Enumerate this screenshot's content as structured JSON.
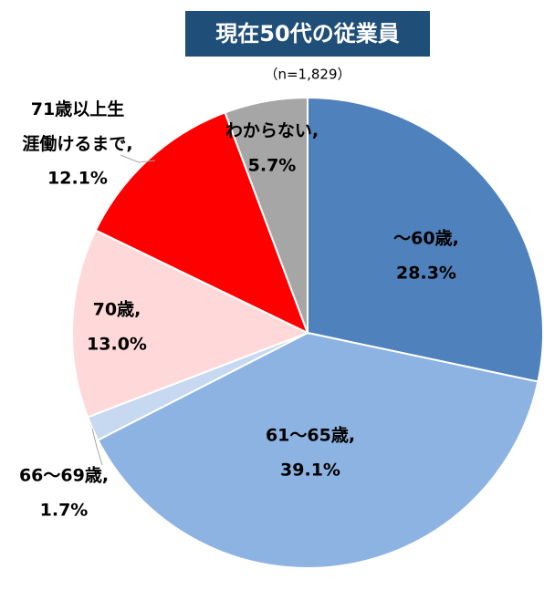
{
  "chart_data": {
    "type": "pie",
    "title": "現在50代の従業員",
    "subtitle": "（n=1,829）",
    "categories": [
      "～60歳,",
      "61～65歳,",
      "66～69歳,",
      "70歳,",
      "71歳以上生涯働けるまで,",
      "わからない,"
    ],
    "values": [
      28.3,
      39.1,
      1.7,
      13.0,
      12.1,
      5.7
    ],
    "value_labels": [
      "28.3%",
      "39.1%",
      "1.7%",
      "13.0%",
      "12.1%",
      "5.7%"
    ],
    "colors": [
      "#4f81bd",
      "#8db3e2",
      "#c6d9f1",
      "#ffd9d9",
      "#ff0000",
      "#a6a6a6"
    ]
  }
}
